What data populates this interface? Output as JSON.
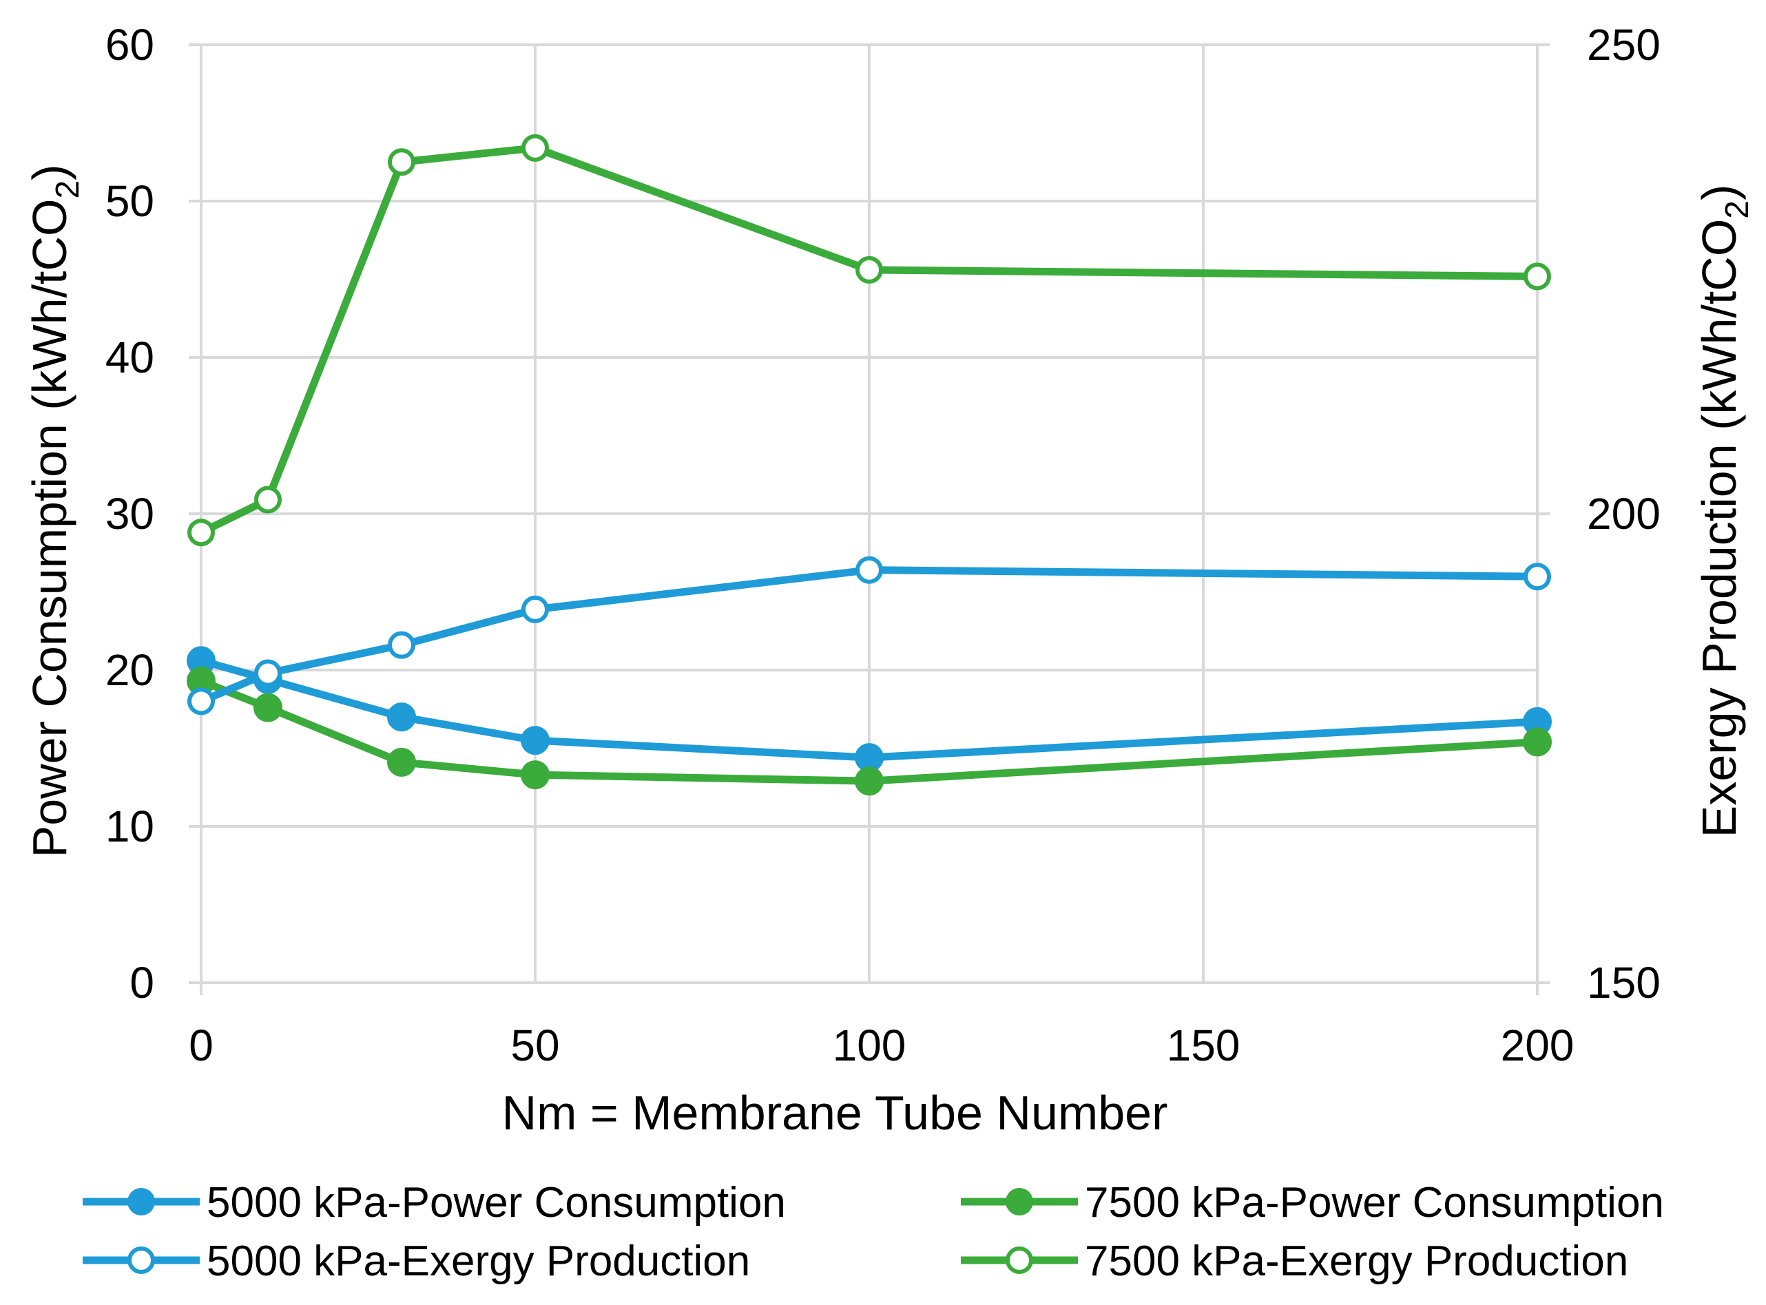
{
  "chart_data": {
    "type": "line",
    "title": "",
    "xlabel": "Nm = Membrane Tube Number",
    "ylabel": {
      "main": "Power Consumption (kWh/tCO",
      "sub": "2",
      "end": ")"
    },
    "y2label": {
      "main": "Exergy Production (kWh/tCO",
      "sub": "2",
      "end": ")"
    },
    "xlim": [
      0,
      200
    ],
    "ylim": [
      0,
      60
    ],
    "y2lim": [
      150,
      250
    ],
    "xticks": [
      "0",
      "50",
      "100",
      "150",
      "200"
    ],
    "yticks": [
      "0",
      "10",
      "20",
      "30",
      "40",
      "50",
      "60"
    ],
    "y2ticks": [
      "150",
      "200",
      "250"
    ],
    "grid": true,
    "legend_position": "bottom",
    "x": [
      0,
      10,
      30,
      50,
      100,
      200
    ],
    "series": [
      {
        "name": "5000 kPa-Power Consumption",
        "axis": "left",
        "marker": "filled",
        "color": "#1f9bd7",
        "values": [
          20.6,
          19.4,
          17.0,
          15.5,
          14.4,
          16.7
        ]
      },
      {
        "name": "7500 kPa-Power Consumption",
        "axis": "left",
        "marker": "filled",
        "color": "#3bab3b",
        "values": [
          19.3,
          17.6,
          14.1,
          13.3,
          12.9,
          15.4
        ]
      },
      {
        "name": "5000 kPa-Exergy Production",
        "axis": "right",
        "marker": "hollow",
        "color": "#1f9bd7",
        "values": [
          180.0,
          183.0,
          186.0,
          189.8,
          194.0,
          193.3
        ]
      },
      {
        "name": "7500 kPa-Exergy Production",
        "axis": "right",
        "marker": "hollow",
        "color": "#3bab3b",
        "values": [
          198.0,
          201.5,
          237.5,
          239.0,
          226.0,
          225.3
        ]
      }
    ]
  }
}
